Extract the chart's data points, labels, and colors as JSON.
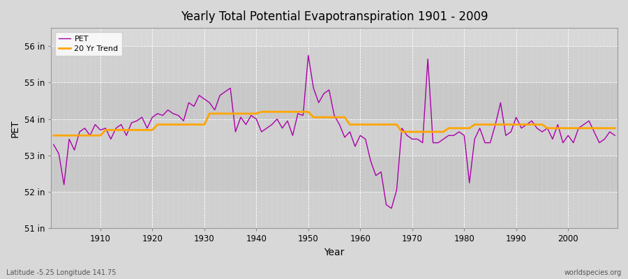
{
  "title": "Yearly Total Potential Evapotranspiration 1901 - 2009",
  "xlabel": "Year",
  "ylabel": "PET",
  "subtitle_left": "Latitude -5.25 Longitude 141.75",
  "subtitle_right": "worldspecies.org",
  "bg_color": "#d8d8d8",
  "plot_bg_color": "#d8d8d8",
  "pet_color": "#aa00aa",
  "trend_color": "#ffa500",
  "ylim": [
    51,
    56.5
  ],
  "yticks": [
    51,
    52,
    53,
    54,
    55,
    56
  ],
  "ytick_labels": [
    "51 in",
    "52 in",
    "53 in",
    "54 in",
    "55 in",
    "56 in"
  ],
  "years": [
    1901,
    1902,
    1903,
    1904,
    1905,
    1906,
    1907,
    1908,
    1909,
    1910,
    1911,
    1912,
    1913,
    1914,
    1915,
    1916,
    1917,
    1918,
    1919,
    1920,
    1921,
    1922,
    1923,
    1924,
    1925,
    1926,
    1927,
    1928,
    1929,
    1930,
    1931,
    1932,
    1933,
    1934,
    1935,
    1936,
    1937,
    1938,
    1939,
    1940,
    1941,
    1942,
    1943,
    1944,
    1945,
    1946,
    1947,
    1948,
    1949,
    1950,
    1951,
    1952,
    1953,
    1954,
    1955,
    1956,
    1957,
    1958,
    1959,
    1960,
    1961,
    1962,
    1963,
    1964,
    1965,
    1966,
    1967,
    1968,
    1969,
    1970,
    1971,
    1972,
    1973,
    1974,
    1975,
    1976,
    1977,
    1978,
    1979,
    1980,
    1981,
    1982,
    1983,
    1984,
    1985,
    1986,
    1987,
    1988,
    1989,
    1990,
    1991,
    1992,
    1993,
    1994,
    1995,
    1996,
    1997,
    1998,
    1999,
    2000,
    2001,
    2002,
    2003,
    2004,
    2005,
    2006,
    2007,
    2008,
    2009
  ],
  "pet_values": [
    53.3,
    53.05,
    52.2,
    53.45,
    53.15,
    53.65,
    53.75,
    53.55,
    53.85,
    53.7,
    53.75,
    53.45,
    53.75,
    53.85,
    53.55,
    53.9,
    53.95,
    54.05,
    53.75,
    54.05,
    54.15,
    54.1,
    54.25,
    54.15,
    54.1,
    53.95,
    54.45,
    54.35,
    54.65,
    54.55,
    54.45,
    54.25,
    54.65,
    54.75,
    54.85,
    53.65,
    54.05,
    53.85,
    54.1,
    54.0,
    53.65,
    53.75,
    53.85,
    54.0,
    53.75,
    53.95,
    53.55,
    54.15,
    54.1,
    55.75,
    54.85,
    54.45,
    54.7,
    54.8,
    54.1,
    53.85,
    53.5,
    53.65,
    53.25,
    53.55,
    53.45,
    52.85,
    52.45,
    52.55,
    51.65,
    51.55,
    52.05,
    53.75,
    53.55,
    53.45,
    53.45,
    53.35,
    55.65,
    53.35,
    53.35,
    53.45,
    53.55,
    53.55,
    53.65,
    53.55,
    52.25,
    53.45,
    53.75,
    53.35,
    53.35,
    53.85,
    54.45,
    53.55,
    53.65,
    54.05,
    53.75,
    53.85,
    53.95,
    53.75,
    53.65,
    53.75,
    53.45,
    53.85,
    53.35,
    53.55,
    53.35,
    53.75,
    53.85,
    53.95,
    53.65,
    53.35,
    53.45,
    53.65,
    53.55
  ],
  "trend_values": [
    53.55,
    53.55,
    53.55,
    53.55,
    53.55,
    53.55,
    53.55,
    53.55,
    53.55,
    53.55,
    53.7,
    53.7,
    53.7,
    53.7,
    53.7,
    53.7,
    53.7,
    53.7,
    53.7,
    53.7,
    53.85,
    53.85,
    53.85,
    53.85,
    53.85,
    53.85,
    53.85,
    53.85,
    53.85,
    53.85,
    54.15,
    54.15,
    54.15,
    54.15,
    54.15,
    54.15,
    54.15,
    54.15,
    54.15,
    54.15,
    54.2,
    54.2,
    54.2,
    54.2,
    54.2,
    54.2,
    54.2,
    54.2,
    54.2,
    54.2,
    54.05,
    54.05,
    54.05,
    54.05,
    54.05,
    54.05,
    54.05,
    53.85,
    53.85,
    53.85,
    53.85,
    53.85,
    53.85,
    53.85,
    53.85,
    53.85,
    53.85,
    53.65,
    53.65,
    53.65,
    53.65,
    53.65,
    53.65,
    53.65,
    53.65,
    53.65,
    53.75,
    53.75,
    53.75,
    53.75,
    53.75,
    53.85,
    53.85,
    53.85,
    53.85,
    53.85,
    53.85,
    53.85,
    53.85,
    53.85,
    53.85,
    53.85,
    53.85,
    53.85,
    53.85,
    53.75,
    53.75,
    53.75,
    53.75,
    53.75,
    53.75,
    53.75,
    53.75,
    53.75,
    53.75,
    53.75,
    53.75,
    53.75,
    53.75
  ]
}
